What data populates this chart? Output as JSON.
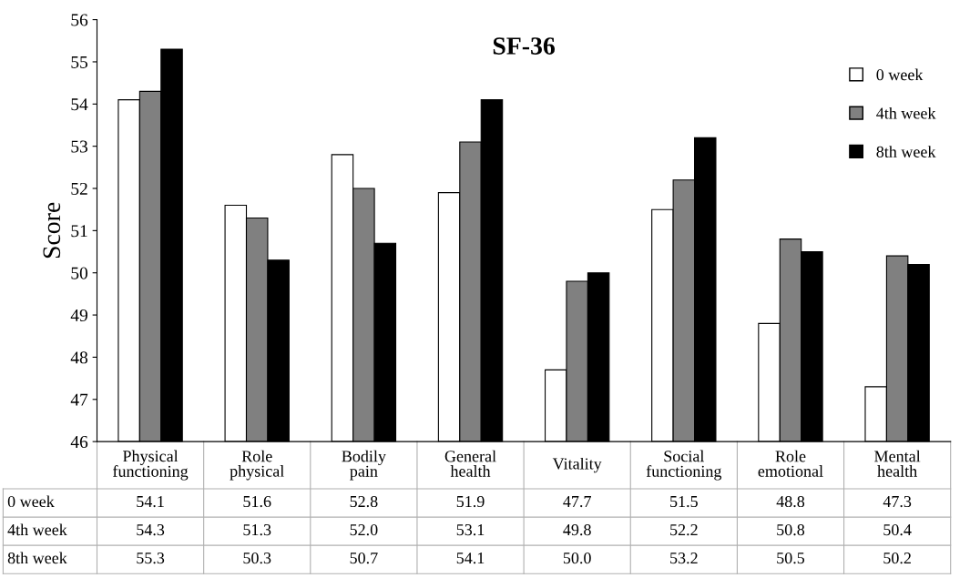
{
  "chart_data": {
    "type": "bar",
    "title": "SF-36",
    "ylabel": "Score",
    "categories": [
      "Physical functioning",
      "Role physical",
      "Bodily pain",
      "General health",
      "Vitality",
      "Social functioning",
      "Role emotional",
      "Mental health"
    ],
    "series": [
      {
        "name": "0 week",
        "color": "#ffffff",
        "values": [
          54.1,
          51.6,
          52.8,
          51.9,
          47.7,
          51.5,
          48.8,
          47.3
        ],
        "value_labels": [
          "54.1",
          "51.6",
          "52.8",
          "51.9",
          "47.7",
          "51.5",
          "48.8",
          "47.3"
        ]
      },
      {
        "name": "4th week",
        "color": "#808080",
        "values": [
          54.3,
          51.3,
          52.0,
          53.1,
          49.8,
          52.2,
          50.8,
          50.4
        ],
        "value_labels": [
          "54.3",
          "51.3",
          "52.0",
          "53.1",
          "49.8",
          "52.2",
          "50.8",
          "50.4"
        ]
      },
      {
        "name": "8th week",
        "color": "#000000",
        "values": [
          55.3,
          50.3,
          50.7,
          54.1,
          50.0,
          53.2,
          50.5,
          50.2
        ],
        "value_labels": [
          "55.3",
          "50.3",
          "50.7",
          "54.1",
          "50.0",
          "53.2",
          "50.5",
          "50.2"
        ]
      }
    ],
    "ylim": [
      46,
      56
    ],
    "yticks": [
      46,
      47,
      48,
      49,
      50,
      51,
      52,
      53,
      54,
      55,
      56
    ],
    "grid": false,
    "legend": "top right"
  }
}
